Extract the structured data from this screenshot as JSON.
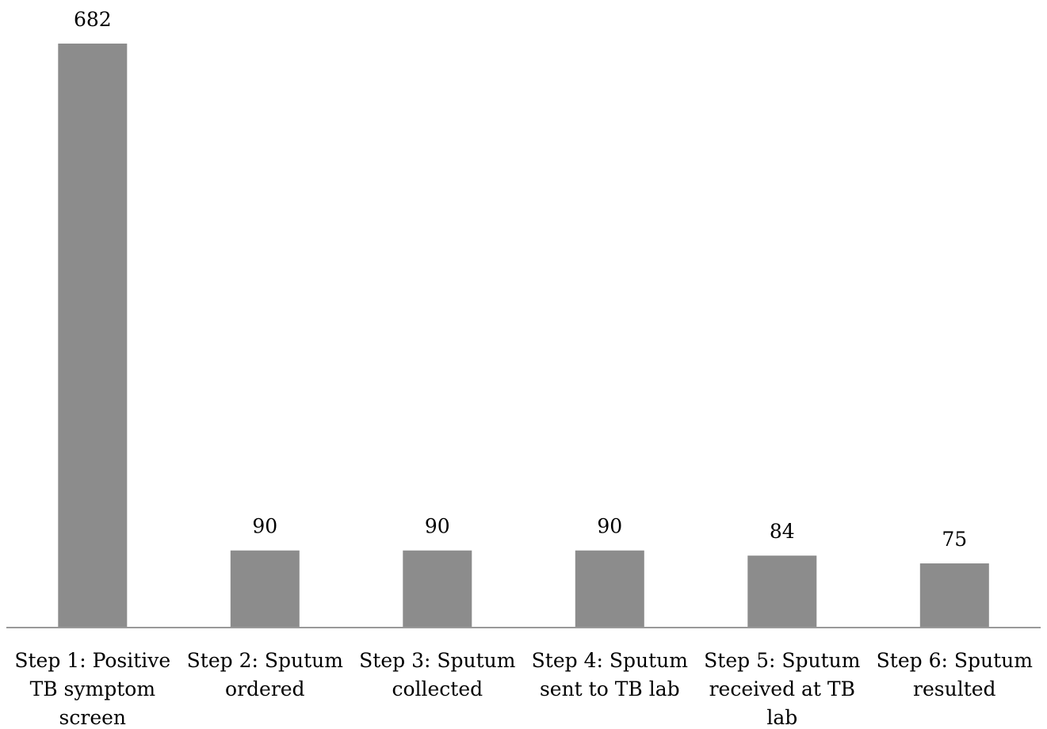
{
  "chart_data": {
    "type": "bar",
    "title": "",
    "xlabel": "",
    "ylabel": "",
    "categories": [
      [
        "Step 1: Positive",
        "TB symptom",
        "screen"
      ],
      [
        "Step 2: Sputum",
        "ordered"
      ],
      [
        "Step 3: Sputum",
        "collected"
      ],
      [
        "Step 4: Sputum",
        "sent to TB lab"
      ],
      [
        "Step 5: Sputum",
        "received at TB",
        "lab"
      ],
      [
        "Step 6: Sputum",
        "resulted"
      ]
    ],
    "values": [
      682,
      90,
      90,
      90,
      84,
      75
    ],
    "data_labels": [
      "682",
      "90",
      "90",
      "90",
      "84",
      "75"
    ],
    "ylim": [
      0,
      682
    ],
    "grid": false,
    "legend": "none",
    "bar_color": "#8c8c8c",
    "axis_color": "#999999"
  }
}
